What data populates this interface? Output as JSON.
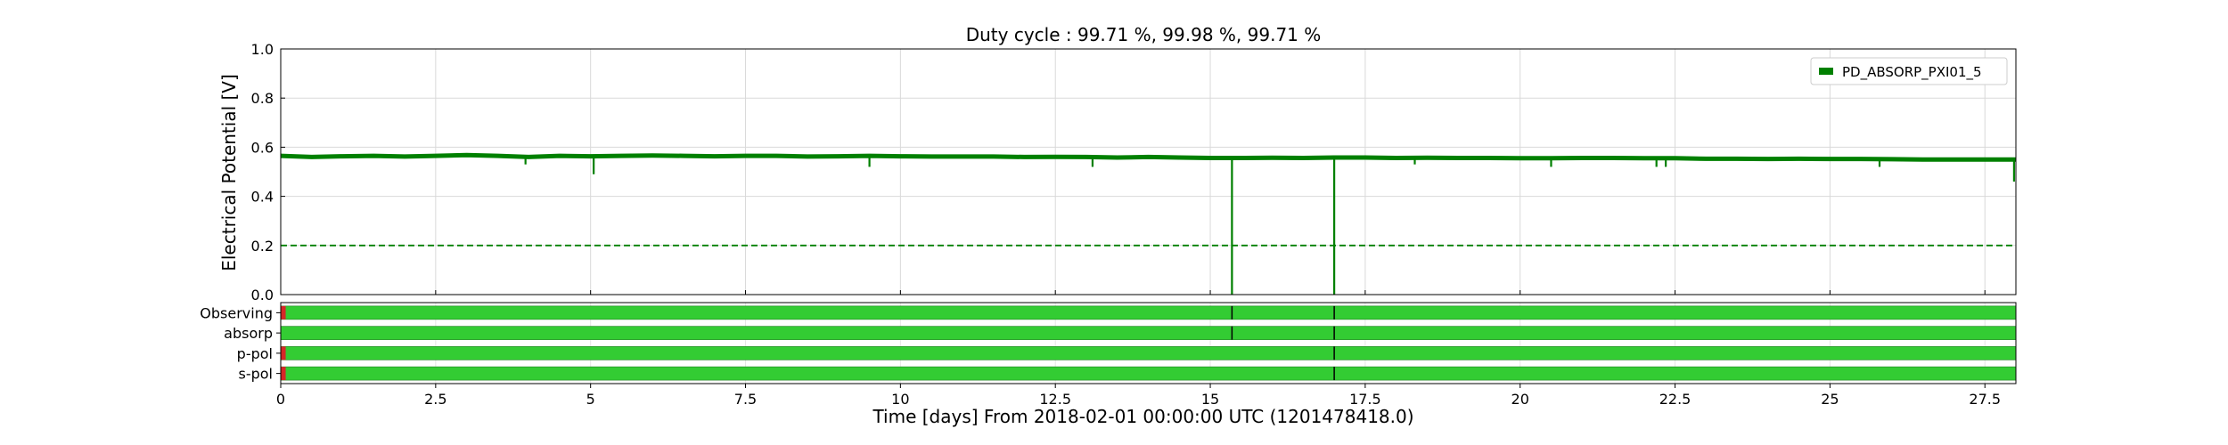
{
  "chart_data": {
    "type": "line",
    "title": "Duty cycle : 99.71 %, 99.98 %, 99.71 %",
    "xlabel": "Time [days] From 2018-02-01 00:00:00 UTC (1201478418.0)",
    "ylabel": "Electrical Potential [V]",
    "xlim": [
      0,
      28
    ],
    "ylim": [
      0,
      1.0
    ],
    "x_ticks": [
      0,
      2.5,
      5,
      7.5,
      10,
      12.5,
      15,
      17.5,
      20,
      22.5,
      25,
      27.5
    ],
    "y_ticks": [
      0.0,
      0.2,
      0.4,
      0.6,
      0.8,
      1.0
    ],
    "grid": true,
    "legend_position": "top-right",
    "series": [
      {
        "name": "PD_ABSORP_PXI01_5",
        "color": "#008000",
        "points": [
          [
            0,
            0.565
          ],
          [
            0.5,
            0.56
          ],
          [
            1,
            0.563
          ],
          [
            1.5,
            0.565
          ],
          [
            2,
            0.562
          ],
          [
            2.5,
            0.565
          ],
          [
            3,
            0.568
          ],
          [
            3.5,
            0.565
          ],
          [
            4,
            0.56
          ],
          [
            4.5,
            0.565
          ],
          [
            5,
            0.563
          ],
          [
            5.5,
            0.565
          ],
          [
            6,
            0.566
          ],
          [
            6.5,
            0.565
          ],
          [
            7,
            0.563
          ],
          [
            7.5,
            0.565
          ],
          [
            8,
            0.565
          ],
          [
            8.5,
            0.562
          ],
          [
            9,
            0.563
          ],
          [
            9.5,
            0.565
          ],
          [
            10,
            0.563
          ],
          [
            10.5,
            0.562
          ],
          [
            11,
            0.562
          ],
          [
            11.5,
            0.562
          ],
          [
            12,
            0.56
          ],
          [
            12.5,
            0.561
          ],
          [
            13,
            0.56
          ],
          [
            13.5,
            0.558
          ],
          [
            14,
            0.56
          ],
          [
            14.5,
            0.558
          ],
          [
            15,
            0.556
          ],
          [
            15.5,
            0.556
          ],
          [
            16,
            0.557
          ],
          [
            16.5,
            0.556
          ],
          [
            17,
            0.558
          ],
          [
            17.5,
            0.558
          ],
          [
            18,
            0.556
          ],
          [
            18.5,
            0.557
          ],
          [
            19,
            0.556
          ],
          [
            19.5,
            0.556
          ],
          [
            20,
            0.555
          ],
          [
            20.5,
            0.555
          ],
          [
            21,
            0.556
          ],
          [
            21.5,
            0.556
          ],
          [
            22,
            0.555
          ],
          [
            22.5,
            0.555
          ],
          [
            23,
            0.553
          ],
          [
            23.5,
            0.553
          ],
          [
            24,
            0.552
          ],
          [
            24.5,
            0.553
          ],
          [
            25,
            0.552
          ],
          [
            25.5,
            0.552
          ],
          [
            26,
            0.551
          ],
          [
            26.5,
            0.55
          ],
          [
            27,
            0.55
          ],
          [
            27.5,
            0.55
          ],
          [
            28,
            0.55
          ]
        ],
        "dips": [
          {
            "x": 3.95,
            "y": 0.53
          },
          {
            "x": 5.05,
            "y": 0.49
          },
          {
            "x": 9.5,
            "y": 0.52
          },
          {
            "x": 13.1,
            "y": 0.52
          },
          {
            "x": 15.35,
            "y": 0.0
          },
          {
            "x": 17.0,
            "y": 0.0
          },
          {
            "x": 18.3,
            "y": 0.53
          },
          {
            "x": 20.5,
            "y": 0.52
          },
          {
            "x": 22.2,
            "y": 0.52
          },
          {
            "x": 22.35,
            "y": 0.52
          },
          {
            "x": 25.8,
            "y": 0.52
          },
          {
            "x": 27.97,
            "y": 0.46
          }
        ]
      }
    ],
    "threshold": {
      "y": 0.2,
      "color": "#008000",
      "style": "dashed"
    },
    "segments": {
      "active_color": "#33cc33",
      "gap_color": "#d62728",
      "rows": [
        {
          "label": "Observing",
          "gaps": [
            [
              0.0,
              0.08
            ]
          ],
          "edges": [
            15.35,
            17.0
          ]
        },
        {
          "label": "absorp",
          "gaps": [],
          "edges": [
            15.35,
            17.0
          ]
        },
        {
          "label": "p-pol",
          "gaps": [
            [
              0.0,
              0.08
            ]
          ],
          "edges": [
            17.0
          ]
        },
        {
          "label": "s-pol",
          "gaps": [
            [
              0.0,
              0.08
            ]
          ],
          "edges": [
            17.0
          ]
        }
      ]
    }
  }
}
